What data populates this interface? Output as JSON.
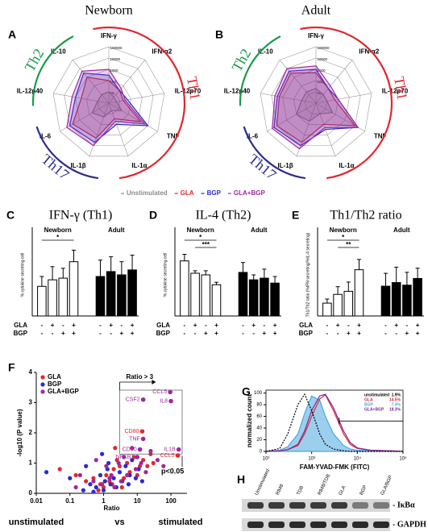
{
  "chart_data": [
    {
      "type": "radar",
      "panel": "A",
      "title": "Newborn",
      "axes": [
        "IFN-γ",
        "IFN-α2",
        "IL-12p70",
        "TNF",
        "IL-1α",
        "IL-1β",
        "IL-6",
        "IL-12p40",
        "IL-10"
      ],
      "log_scale": true,
      "rlim": [
        1,
        100000
      ],
      "rticks": [
        1,
        10,
        100,
        1000,
        10000,
        100000
      ],
      "series": [
        {
          "name": "Unstimulated",
          "color": "#8c8c8c",
          "values": [
            10,
            5,
            5,
            20,
            5,
            20,
            50,
            10,
            10
          ]
        },
        {
          "name": "GLA",
          "color": "#e0282e",
          "values": [
            100,
            30,
            20,
            2000,
            30,
            2000,
            5000,
            300,
            1000
          ]
        },
        {
          "name": "BGP",
          "color": "#2a2ad0",
          "values": [
            300,
            30,
            50,
            10000,
            100,
            5000,
            10000,
            1000,
            3000
          ]
        },
        {
          "name": "GLA+BGP",
          "color": "#a0289c",
          "values": [
            1000,
            50,
            30,
            5000,
            50,
            10000,
            20000,
            2000,
            5000
          ]
        }
      ],
      "groups": [
        {
          "label": "Th1",
          "color": "#e0282e",
          "from": 0,
          "to": 4
        },
        {
          "label": "Th17",
          "color": "#2c2c8c",
          "from": 5,
          "to": 6
        },
        {
          "label": "Th2",
          "color": "#1a9a4a",
          "from": 7,
          "to": 8
        }
      ]
    },
    {
      "type": "radar",
      "panel": "B",
      "title": "Adult",
      "axes": [
        "IFN-γ",
        "IFN-α2",
        "IL-12p70",
        "TNF",
        "IL-1α",
        "IL-1β",
        "IL-6",
        "IL-12p40",
        "IL-10"
      ],
      "log_scale": true,
      "rlim": [
        1,
        100000
      ],
      "rticks": [
        1,
        10,
        100,
        1000,
        10000,
        100000
      ],
      "series": [
        {
          "color": "#8c8c8c",
          "values": [
            20,
            10,
            10,
            50,
            10,
            50,
            100,
            20,
            20
          ]
        },
        {
          "color": "#e0282e",
          "values": [
            500,
            50,
            50,
            10000,
            100,
            5000,
            10000,
            2000,
            3000
          ]
        },
        {
          "color": "#2a2ad0",
          "values": [
            1000,
            50,
            100,
            20000,
            300,
            10000,
            20000,
            3000,
            5000
          ]
        },
        {
          "color": "#a0289c",
          "values": [
            2000,
            100,
            100,
            20000,
            200,
            20000,
            30000,
            5000,
            10000
          ]
        }
      ],
      "groups": [
        {
          "label": "Th1",
          "color": "#e0282e",
          "from": 0,
          "to": 4
        },
        {
          "label": "Th17",
          "color": "#2c2c8c",
          "from": 5,
          "to": 6
        },
        {
          "label": "Th2",
          "color": "#1a9a4a",
          "from": 7,
          "to": 8
        }
      ]
    },
    {
      "type": "bar",
      "panel": "C",
      "title": "IFN-γ (Th1)",
      "y_label": "% cytokine secreting cell",
      "ylim": [
        0,
        50
      ],
      "groups": [
        {
          "label": "Newborn",
          "color": "#ffffff"
        },
        {
          "label": "Adult",
          "color": "#000000"
        }
      ],
      "values": [
        18,
        22,
        23,
        33,
        24,
        27,
        25,
        28
      ],
      "errors": [
        6,
        8,
        6,
        7,
        10,
        9,
        8,
        9
      ],
      "rows": [
        {
          "label": "GLA",
          "signs": [
            "-",
            "+",
            "-",
            "+",
            "-",
            "+",
            "-",
            "+"
          ]
        },
        {
          "label": "BGP",
          "signs": [
            "-",
            "-",
            "+",
            "+",
            "-",
            "-",
            "+",
            "+"
          ]
        }
      ],
      "significance": [
        {
          "text": "*",
          "from": 0,
          "to": 3
        }
      ]
    },
    {
      "type": "bar",
      "panel": "D",
      "title": "IL-4 (Th2)",
      "y_label": "% cytokine secreting cell",
      "ylim": [
        0,
        100
      ],
      "groups": [
        {
          "label": "Newborn",
          "color": "#ffffff"
        },
        {
          "label": "Adult",
          "color": "#000000"
        }
      ],
      "values": [
        67,
        52,
        50,
        38,
        53,
        44,
        46,
        40
      ],
      "errors": [
        8,
        3,
        5,
        3,
        12,
        6,
        11,
        8
      ],
      "rows": [
        {
          "label": "GLA",
          "signs": [
            "-",
            "+",
            "-",
            "+",
            "-",
            "+",
            "-",
            "+"
          ]
        },
        {
          "label": "BGP",
          "signs": [
            "-",
            "-",
            "+",
            "+",
            "-",
            "-",
            "+",
            "+"
          ]
        }
      ],
      "significance": [
        {
          "text": "*",
          "from": 0,
          "to": 3
        },
        {
          "text": "***",
          "from": 1,
          "to": 3
        }
      ]
    },
    {
      "type": "bar",
      "panel": "E",
      "title": "Th1/Th2 ratio",
      "y_label": "Th1/Th2 ratio (%IFN secreting/%IL-4 secreting)",
      "ylim": [
        0,
        1.6
      ],
      "groups": [
        {
          "label": "Newborn",
          "color": "#ffffff"
        },
        {
          "label": "Adult",
          "color": "#000000"
        }
      ],
      "values": [
        0.25,
        0.42,
        0.48,
        0.9,
        0.58,
        0.65,
        0.6,
        0.73
      ],
      "errors": [
        0.08,
        0.15,
        0.18,
        0.2,
        0.25,
        0.3,
        0.25,
        0.2
      ],
      "rows": [
        {
          "label": "GLA",
          "signs": [
            "-",
            "+",
            "-",
            "+",
            "-",
            "+",
            "-",
            "+"
          ]
        },
        {
          "label": "BGP",
          "signs": [
            "-",
            "-",
            "+",
            "+",
            "-",
            "-",
            "+",
            "+"
          ]
        }
      ],
      "significance": [
        {
          "text": "*",
          "from": 0,
          "to": 3
        },
        {
          "text": "**",
          "from": 1,
          "to": 3
        }
      ]
    },
    {
      "type": "scatter",
      "panel": "F",
      "x_label": "Ratio",
      "y_label": "-log10 (P value)",
      "x_log": true,
      "xlim": [
        0.01,
        300
      ],
      "xticks": [
        0.01,
        0.1,
        1,
        10,
        100
      ],
      "ylim": [
        0,
        4
      ],
      "yticks": [
        0,
        1,
        2,
        3,
        4
      ],
      "footer": [
        "unstimulated",
        "vs",
        "stimulated"
      ],
      "ratio_threshold": 3,
      "ratio_label": "Ratio > 3",
      "p_threshold": 1.3,
      "p_label": "p<0.05",
      "series": [
        {
          "name": "GLA",
          "color": "#e0282e",
          "x": [
            0.5,
            0.8,
            1,
            1.2,
            1.5,
            2,
            2.5,
            3,
            4,
            5,
            6,
            8,
            10,
            12,
            15,
            0.3,
            0.05,
            0.7,
            1.8,
            2.2,
            3.5,
            20,
            30,
            25,
            0.15
          ],
          "values": [
            0.5,
            0.3,
            0.2,
            0.6,
            0.4,
            0.8,
            1.1,
            0.9,
            0.5,
            1,
            0.7,
            1.2,
            0.6,
            0.9,
            1.1,
            0.4,
            0.8,
            0.1,
            0.3,
            1.5,
            0.2,
            0.9,
            1.0,
            1.3,
            0.6
          ]
        },
        {
          "name": "BGP",
          "color": "#2a2ad0",
          "x": [
            0.02,
            0.1,
            0.3,
            0.4,
            0.6,
            0.8,
            1,
            1.1,
            1.3,
            1.6,
            2,
            2.4,
            3,
            3.6,
            4.5,
            5.5,
            7,
            9,
            11,
            14,
            0.9,
            1.4,
            0.25,
            0.5,
            6
          ],
          "values": [
            0.7,
            0.5,
            0.9,
            0.3,
            0.2,
            0.6,
            0.1,
            0.4,
            0.8,
            0.3,
            0.5,
            0.2,
            0.7,
            0.4,
            0.9,
            0.3,
            1.1,
            0.5,
            0.8,
            0.4,
            1.3,
            1.0,
            0.1,
            0.05,
            0.6
          ]
        },
        {
          "name": "GLA+BGP",
          "color": "#a0289c",
          "x": [
            0.2,
            0.5,
            0.9,
            1.2,
            1.7,
            2.1,
            2.8,
            3.3,
            4,
            5,
            7,
            9,
            13,
            18,
            25,
            40,
            60,
            0.15,
            0.6,
            1.5
          ],
          "values": [
            0.6,
            0.4,
            0.3,
            0.9,
            0.6,
            0.2,
            1.0,
            0.4,
            1.2,
            0.6,
            1.5,
            0.8,
            1.0,
            0.7,
            1.4,
            1.1,
            0.9,
            0.2,
            1.1,
            0.5
          ]
        }
      ],
      "labeled_points": [
        {
          "label": "CCL5",
          "x": 95,
          "y": 3.35,
          "color": "#a0289c"
        },
        {
          "label": "IL8",
          "x": 100,
          "y": 3.05,
          "color": "#a0289c"
        },
        {
          "label": "CSF2",
          "x": 15,
          "y": 3.1,
          "color": "#a0289c"
        },
        {
          "label": "CD80",
          "x": 14,
          "y": 2.05,
          "color": "#e0282e"
        },
        {
          "label": "TNF",
          "x": 15,
          "y": 1.8,
          "color": "#a0289c"
        },
        {
          "label": "CD80",
          "x": 12,
          "y": 1.45,
          "color": "#a0289c"
        },
        {
          "label": "NFKB1",
          "x": 10,
          "y": 1.2,
          "color": "#a0289c"
        },
        {
          "label": "IL1B",
          "x": 170,
          "y": 1.45,
          "color": "#a0289c"
        },
        {
          "label": "CCL5",
          "x": 160,
          "y": 1.25,
          "color": "#e0282e"
        }
      ]
    },
    {
      "type": "line",
      "panel": "G",
      "x_label": "FAM-YVAD-FMK (FITC)",
      "y_label": "normalized count",
      "x_log": true,
      "xlim": [
        100,
        100000
      ],
      "xticks": [
        {
          "value": 100,
          "label": "10²"
        },
        {
          "value": 1000,
          "label": "10³"
        },
        {
          "value": 10000,
          "label": "10⁴"
        },
        {
          "value": 100000,
          "label": "10⁵"
        }
      ],
      "ylim": [
        0,
        105
      ],
      "yticks": [
        0,
        20,
        40,
        60,
        80,
        100
      ],
      "x": [
        100,
        200,
        300,
        500,
        700,
        1000,
        1500,
        2000,
        3000,
        5000,
        7000,
        10000,
        20000,
        50000,
        100000
      ],
      "gate_x": [
        4000,
        100000
      ],
      "gate_y": 52,
      "series": [
        {
          "name": "unstimulated",
          "gate": "1.9%",
          "color": "#000000",
          "dashed": true,
          "values": [
            0,
            5,
            30,
            80,
            98,
            70,
            30,
            12,
            4,
            1,
            0,
            0,
            0,
            0,
            0
          ]
        },
        {
          "name": "GLA",
          "gate": "14.5%",
          "color": "#e0282e",
          "values": [
            0,
            1,
            3,
            10,
            30,
            60,
            90,
            97,
            70,
            30,
            12,
            5,
            2,
            1,
            0
          ]
        },
        {
          "name": "BGP",
          "gate": "7.4%",
          "color": "#4aa8e0",
          "filled": true,
          "values": [
            0,
            2,
            8,
            30,
            65,
            95,
            88,
            60,
            30,
            10,
            4,
            2,
            1,
            0,
            0
          ]
        },
        {
          "name": "GLA+BGP",
          "gate": "18.3%",
          "color": "#7a2a9c",
          "values": [
            0,
            1,
            3,
            12,
            35,
            70,
            95,
            98,
            75,
            35,
            15,
            6,
            2,
            1,
            0
          ]
        }
      ]
    }
  ],
  "blot": {
    "panel": "H",
    "lanes": [
      "Unstimulated",
      "R848",
      "TDB",
      "R848/TDB",
      "GLA",
      "BGP",
      "GLA/BGP"
    ],
    "bands": [
      "- IκBα",
      "- GAPDH"
    ]
  }
}
